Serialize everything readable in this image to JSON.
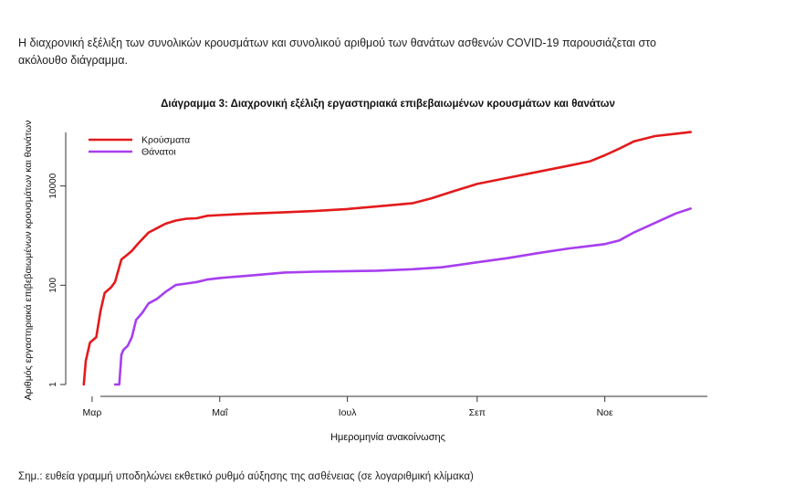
{
  "intro": {
    "line1": "Η διαχρονική εξέλιξη των συνολικών κρουσμάτων και συνολικού αριθμού των θανάτων ασθενών COVID-19 παρουσιάζεται στο",
    "line2": "ακόλουθο διάγραμμα."
  },
  "note": "Σημ.: ευθεία γραμμή υποδηλώνει εκθετικό ρυθμό αύξησης της ασθένειας (σε λογαριθμική κλίμακα)",
  "chart_data": {
    "type": "line",
    "title": "Διάγραμμα 3: Διαχρονική εξέλιξη εργαστηριακά επιβεβαιωμένων κρουσμάτων και θανάτων",
    "xlabel": "Ημερομηνία ανακοίνωσης",
    "ylabel": "Αριθμός εργαστηριακά επιβεβαιωμένων κρουσμάτων και θανάτων",
    "y_scale": "log",
    "ylim": [
      1,
      120000
    ],
    "y_ticks": [
      {
        "value": 1,
        "label": "1"
      },
      {
        "value": 100,
        "label": "100"
      },
      {
        "value": 10000,
        "label": "10000"
      }
    ],
    "xlim": [
      "2020-02-20",
      "2020-12-20"
    ],
    "x_ticks": [
      {
        "date": "2020-03-01",
        "label": "Μαρ"
      },
      {
        "date": "2020-05-01",
        "label": "Μαΐ"
      },
      {
        "date": "2020-07-01",
        "label": "Ιουλ"
      },
      {
        "date": "2020-09-01",
        "label": "Σεπ"
      },
      {
        "date": "2020-11-01",
        "label": "Νοε"
      }
    ],
    "legend_position": "top-left",
    "grid": false,
    "series": [
      {
        "name": "Κρούσματα",
        "color": "#e31a1c",
        "points": [
          [
            "2020-02-26",
            1
          ],
          [
            "2020-02-27",
            3
          ],
          [
            "2020-02-29",
            7
          ],
          [
            "2020-03-03",
            9
          ],
          [
            "2020-03-05",
            30
          ],
          [
            "2020-03-07",
            70
          ],
          [
            "2020-03-10",
            90
          ],
          [
            "2020-03-12",
            117
          ],
          [
            "2020-03-15",
            331
          ],
          [
            "2020-03-18",
            418
          ],
          [
            "2020-03-20",
            495
          ],
          [
            "2020-03-23",
            695
          ],
          [
            "2020-03-28",
            1156
          ],
          [
            "2020-04-01",
            1415
          ],
          [
            "2020-04-05",
            1735
          ],
          [
            "2020-04-10",
            2011
          ],
          [
            "2020-04-15",
            2192
          ],
          [
            "2020-04-20",
            2235
          ],
          [
            "2020-04-25",
            2506
          ],
          [
            "2020-05-01",
            2591
          ],
          [
            "2020-05-15",
            2770
          ],
          [
            "2020-06-01",
            2952
          ],
          [
            "2020-06-15",
            3121
          ],
          [
            "2020-07-01",
            3432
          ],
          [
            "2020-07-15",
            3854
          ],
          [
            "2020-08-01",
            4477
          ],
          [
            "2020-08-10",
            5623
          ],
          [
            "2020-08-20",
            7684
          ],
          [
            "2020-09-01",
            10998
          ],
          [
            "2020-09-15",
            14400
          ],
          [
            "2020-10-01",
            19613
          ],
          [
            "2020-10-15",
            25802
          ],
          [
            "2020-10-25",
            31496
          ],
          [
            "2020-11-01",
            41527
          ],
          [
            "2020-11-08",
            56698
          ],
          [
            "2020-11-15",
            79700
          ],
          [
            "2020-11-25",
            101287
          ],
          [
            "2020-12-05",
            113000
          ],
          [
            "2020-12-12",
            122000
          ]
        ]
      },
      {
        "name": "Θάνατοι",
        "color": "#a73ef0",
        "points": [
          [
            "2020-03-12",
            1
          ],
          [
            "2020-03-14",
            1
          ],
          [
            "2020-03-15",
            4
          ],
          [
            "2020-03-16",
            5
          ],
          [
            "2020-03-18",
            6
          ],
          [
            "2020-03-20",
            9
          ],
          [
            "2020-03-22",
            20
          ],
          [
            "2020-03-25",
            28
          ],
          [
            "2020-03-28",
            43
          ],
          [
            "2020-04-01",
            53
          ],
          [
            "2020-04-05",
            73
          ],
          [
            "2020-04-10",
            101
          ],
          [
            "2020-04-15",
            108
          ],
          [
            "2020-04-20",
            116
          ],
          [
            "2020-04-25",
            130
          ],
          [
            "2020-05-01",
            140
          ],
          [
            "2020-05-15",
            156
          ],
          [
            "2020-06-01",
            180
          ],
          [
            "2020-06-15",
            187
          ],
          [
            "2020-07-01",
            192
          ],
          [
            "2020-07-15",
            196
          ],
          [
            "2020-08-01",
            210
          ],
          [
            "2020-08-15",
            230
          ],
          [
            "2020-09-01",
            290
          ],
          [
            "2020-09-15",
            350
          ],
          [
            "2020-10-01",
            450
          ],
          [
            "2020-10-15",
            551
          ],
          [
            "2020-11-01",
            673
          ],
          [
            "2020-11-08",
            800
          ],
          [
            "2020-11-15",
            1165
          ],
          [
            "2020-11-25",
            1800
          ],
          [
            "2020-12-05",
            2800
          ],
          [
            "2020-12-12",
            3500
          ]
        ]
      }
    ]
  }
}
